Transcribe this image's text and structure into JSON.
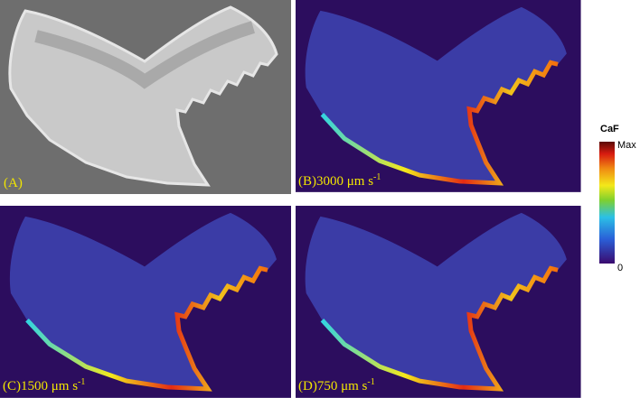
{
  "panels": [
    {
      "label": "(A)"
    },
    {
      "label": "(B)",
      "speed": "3000 μm s",
      "exponent": "-1"
    },
    {
      "label": "(C)",
      "speed": "1500 μm s",
      "exponent": "-1"
    },
    {
      "label": "(D)",
      "speed": "750 μm s",
      "exponent": "-1"
    }
  ],
  "colorbar": {
    "title": "CaF",
    "max": "Max",
    "min": "0"
  }
}
